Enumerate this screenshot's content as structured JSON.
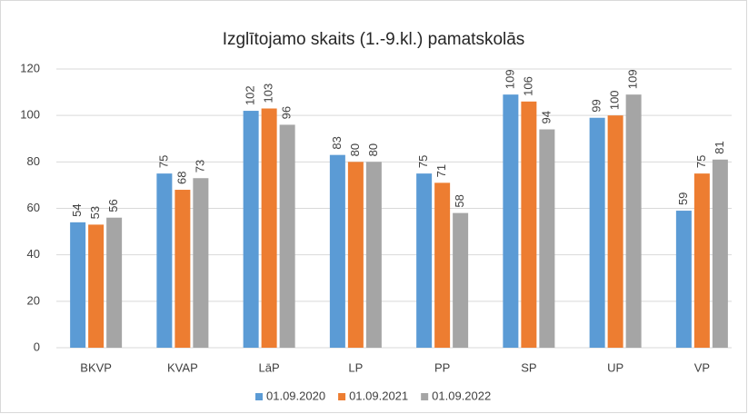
{
  "chart_data": {
    "type": "bar",
    "title": "Izglītojamo skaits (1.-9.kl.) pamatskolās",
    "categories": [
      "BKVP",
      "KVAP",
      "LāP",
      "LP",
      "PP",
      "SP",
      "UP",
      "VP"
    ],
    "series": [
      {
        "name": "01.09.2020",
        "color": "#5b9bd5",
        "values": [
          54,
          75,
          102,
          83,
          75,
          109,
          99,
          59
        ]
      },
      {
        "name": "01.09.2021",
        "color": "#ed7d31",
        "values": [
          53,
          68,
          103,
          80,
          71,
          106,
          100,
          75
        ]
      },
      {
        "name": "01.09.2022",
        "color": "#a5a5a5",
        "values": [
          56,
          73,
          96,
          80,
          58,
          94,
          109,
          81
        ]
      }
    ],
    "ylim": [
      0,
      120
    ],
    "yticks": [
      0,
      20,
      40,
      60,
      80,
      100,
      120
    ],
    "grid": true,
    "legend": "bottom"
  }
}
